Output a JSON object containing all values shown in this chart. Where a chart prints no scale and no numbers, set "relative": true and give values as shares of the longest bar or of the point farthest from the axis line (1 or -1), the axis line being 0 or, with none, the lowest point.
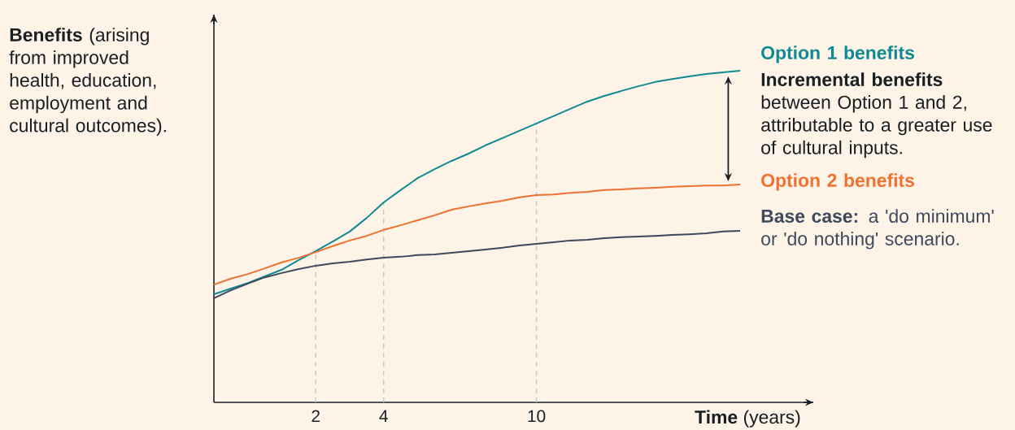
{
  "chart_data": {
    "type": "line",
    "relative": true,
    "marker": "none",
    "xlabel": "**Time** (years)",
    "categories": [
      null,
      null,
      null,
      null,
      null,
      null,
      "2",
      null,
      null,
      null,
      "4",
      null,
      null,
      null,
      null,
      null,
      null,
      null,
      null,
      "10",
      null,
      null,
      null,
      null,
      null,
      null,
      null,
      null,
      null,
      null,
      null,
      null
    ],
    "series": [
      {
        "name": "Option 1 benefits",
        "color": "#0f8a94",
        "values": [
          0.326,
          0.343,
          0.36,
          0.38,
          0.4,
          0.429,
          0.456,
          0.485,
          0.515,
          0.556,
          0.603,
          0.64,
          0.676,
          0.703,
          0.728,
          0.75,
          0.775,
          0.797,
          0.819,
          0.841,
          0.863,
          0.885,
          0.907,
          0.924,
          0.939,
          0.953,
          0.966,
          0.975,
          0.983,
          0.99,
          0.995,
          1
        ]
      },
      {
        "name": "Option 2 benefits",
        "color": "#f07030",
        "values": [
          0.355,
          0.373,
          0.387,
          0.404,
          0.422,
          0.436,
          0.453,
          0.471,
          0.488,
          0.502,
          0.52,
          0.534,
          0.549,
          0.564,
          0.581,
          0.591,
          0.6,
          0.608,
          0.618,
          0.625,
          0.627,
          0.632,
          0.635,
          0.64,
          0.642,
          0.645,
          0.647,
          0.65,
          0.652,
          0.654,
          0.654,
          0.657
        ]
      },
      {
        "name": "**Base case:** a 'do minimum' or 'do nothing' scenario.",
        "color": "#3d4a5c",
        "values": [
          0.314,
          0.338,
          0.358,
          0.377,
          0.39,
          0.402,
          0.412,
          0.419,
          0.424,
          0.431,
          0.436,
          0.439,
          0.444,
          0.446,
          0.451,
          0.456,
          0.461,
          0.466,
          0.473,
          0.478,
          0.483,
          0.488,
          0.49,
          0.495,
          0.498,
          0.5,
          0.502,
          0.505,
          0.507,
          0.51,
          0.515,
          0.517
        ]
      }
    ],
    "annotations": [
      "**Benefits** (arising from improved health, education, employment and cultural outcomes).",
      "**Incremental benefits** between Option 1 and 2, attributable to a greater use of cultural inputs."
    ],
    "ref_lines": [
      {
        "axis": "x",
        "value": "2",
        "color": "#c4c8cc",
        "line_style": "dashed"
      },
      {
        "axis": "x",
        "value": "4",
        "color": "#c4c8cc",
        "line_style": "dashed"
      },
      {
        "axis": "x",
        "value": "10",
        "color": "#c4c8cc",
        "line_style": "dashed"
      }
    ]
  }
}
